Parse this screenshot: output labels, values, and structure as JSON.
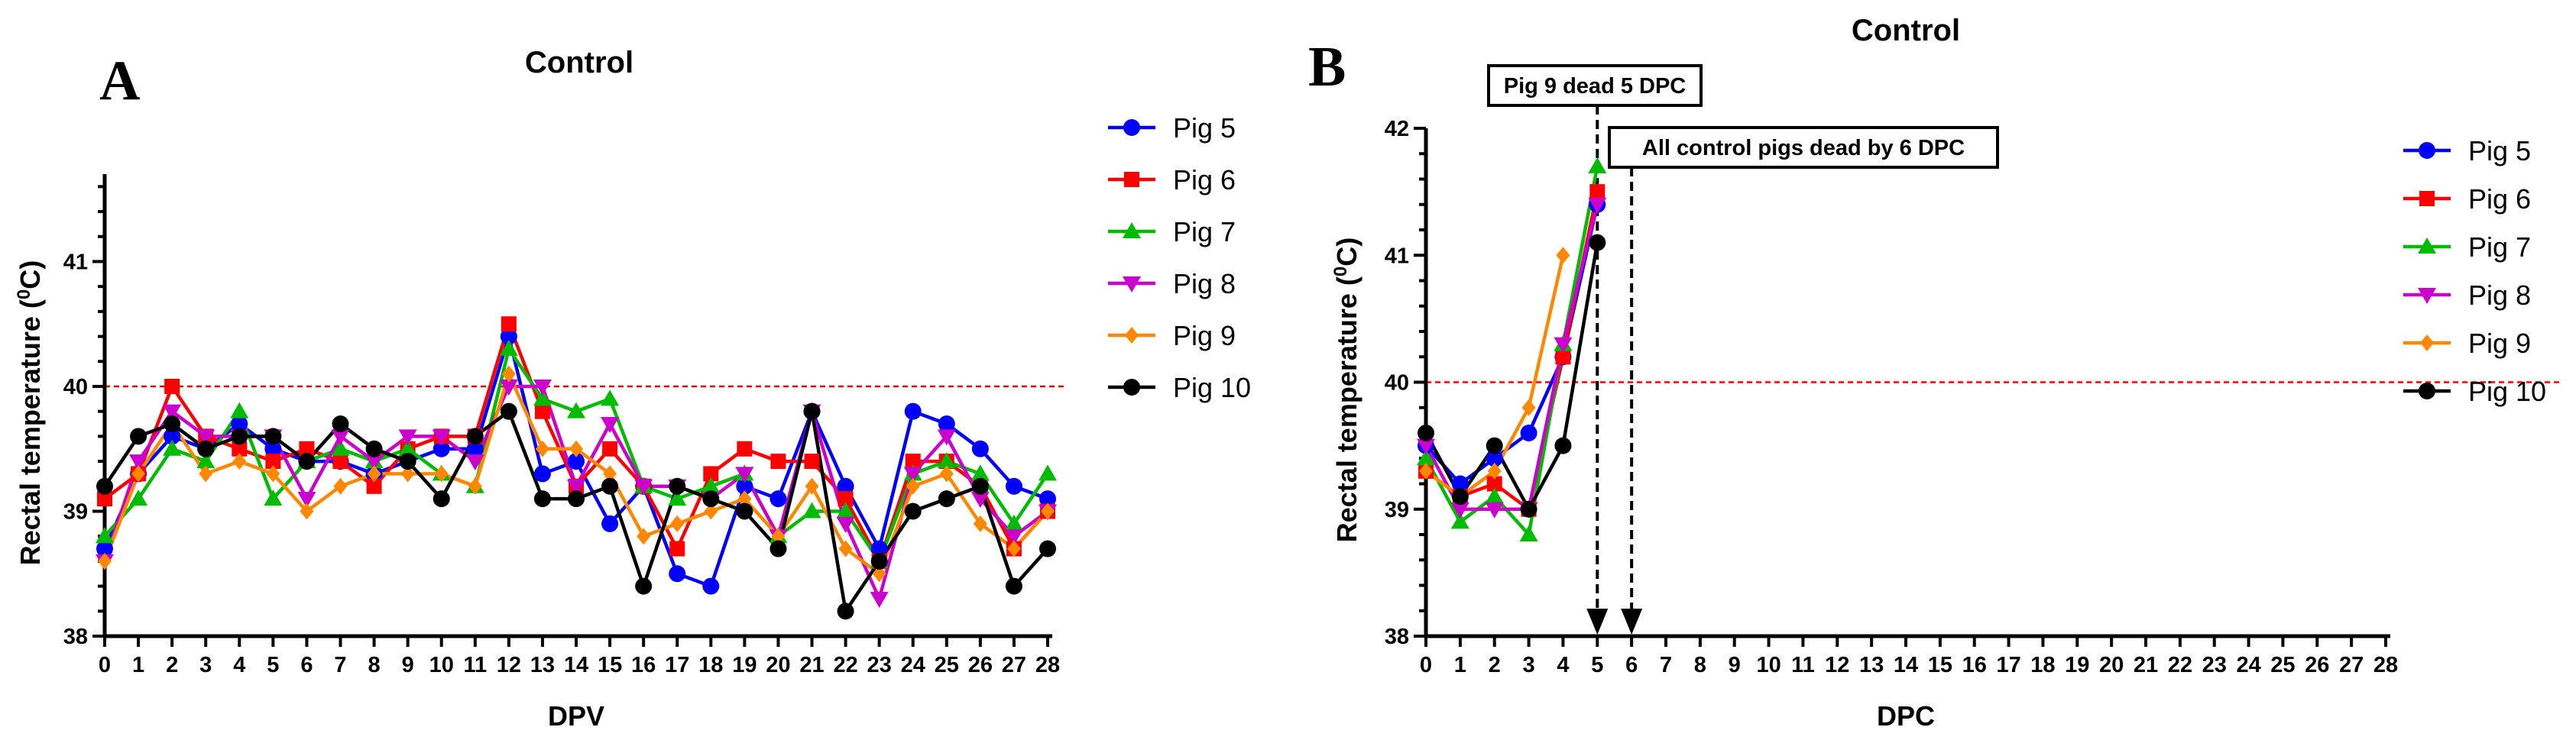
{
  "chart_data": [
    {
      "panel": "A",
      "type": "line",
      "title": "Control",
      "xlabel": "DPV",
      "ylabel": "Rectal temperature (⁰C)",
      "ylabel_main": "Rectal temperature (",
      "ylabel_sup": "0",
      "ylabel_end": "C)",
      "x": [
        0,
        1,
        2,
        3,
        4,
        5,
        6,
        7,
        8,
        9,
        10,
        11,
        12,
        13,
        14,
        15,
        16,
        17,
        18,
        19,
        20,
        21,
        22,
        23,
        24,
        25,
        26,
        27,
        28
      ],
      "xlim": [
        0,
        28
      ],
      "ylim": [
        38,
        41.7
      ],
      "yticks": [
        38,
        39,
        40,
        41
      ],
      "reference_line": 40,
      "series": [
        {
          "name": "Pig 5",
          "color": "#0000ff",
          "marker": "circle",
          "values": [
            38.7,
            39.3,
            39.6,
            39.5,
            39.7,
            39.5,
            39.4,
            39.4,
            39.3,
            39.4,
            39.5,
            39.5,
            40.4,
            39.3,
            39.4,
            38.9,
            39.2,
            38.5,
            38.4,
            39.2,
            39.1,
            39.8,
            39.2,
            38.7,
            39.8,
            39.7,
            39.5,
            39.2,
            39.1
          ]
        },
        {
          "name": "Pig 6",
          "color": "#ff0000",
          "marker": "square",
          "values": [
            39.1,
            39.3,
            40.0,
            39.6,
            39.5,
            39.4,
            39.5,
            39.4,
            39.2,
            39.5,
            39.6,
            39.6,
            40.5,
            39.8,
            39.2,
            39.5,
            39.2,
            38.7,
            39.3,
            39.5,
            39.4,
            39.4,
            39.1,
            38.6,
            39.4,
            39.4,
            39.2,
            38.7,
            39.0
          ]
        },
        {
          "name": "Pig 7",
          "color": "#00bb00",
          "marker": "triangle-up",
          "values": [
            38.8,
            39.1,
            39.5,
            39.4,
            39.8,
            39.1,
            39.4,
            39.5,
            39.4,
            39.5,
            39.3,
            39.2,
            40.3,
            39.9,
            39.8,
            39.9,
            39.2,
            39.1,
            39.2,
            39.3,
            38.8,
            39.0,
            39.0,
            38.6,
            39.3,
            39.4,
            39.3,
            38.9,
            39.3
          ]
        },
        {
          "name": "Pig 8",
          "color": "#cc00cc",
          "marker": "triangle-down",
          "values": [
            38.6,
            39.4,
            39.8,
            39.6,
            39.6,
            39.6,
            39.1,
            39.6,
            39.4,
            39.6,
            39.6,
            39.4,
            40.0,
            40.0,
            39.2,
            39.7,
            39.2,
            39.2,
            39.1,
            39.3,
            38.8,
            39.8,
            38.9,
            38.3,
            39.3,
            39.6,
            39.1,
            38.8,
            39.0
          ]
        },
        {
          "name": "Pig 9",
          "color": "#ff8800",
          "marker": "diamond",
          "values": [
            38.6,
            39.3,
            39.7,
            39.3,
            39.4,
            39.3,
            39.0,
            39.2,
            39.3,
            39.3,
            39.3,
            39.2,
            40.1,
            39.5,
            39.5,
            39.3,
            38.8,
            38.9,
            39.0,
            39.1,
            38.8,
            39.2,
            38.7,
            38.5,
            39.2,
            39.3,
            38.9,
            38.7,
            39.0
          ]
        },
        {
          "name": "Pig 10",
          "color": "#000000",
          "marker": "circle",
          "values": [
            39.2,
            39.6,
            39.7,
            39.5,
            39.6,
            39.6,
            39.4,
            39.7,
            39.5,
            39.4,
            39.1,
            39.6,
            39.8,
            39.1,
            39.1,
            39.2,
            38.4,
            39.2,
            39.1,
            39.0,
            38.7,
            39.8,
            38.2,
            38.6,
            39.0,
            39.1,
            39.2,
            38.4,
            38.7
          ]
        }
      ],
      "legend": "right"
    },
    {
      "panel": "B",
      "type": "line",
      "title": "Control",
      "xlabel": "DPC",
      "ylabel": "Rectal temperature (⁰C)",
      "ylabel_main": "Rectal temperature (",
      "ylabel_sup": "0",
      "ylabel_end": "C)",
      "x": [
        0,
        1,
        2,
        3,
        4,
        5
      ],
      "xlim": [
        0,
        28
      ],
      "xticks": [
        0,
        1,
        2,
        3,
        4,
        5,
        6,
        7,
        8,
        9,
        10,
        11,
        12,
        13,
        14,
        15,
        16,
        17,
        18,
        19,
        20,
        21,
        22,
        23,
        24,
        25,
        26,
        27,
        28
      ],
      "ylim": [
        38,
        42
      ],
      "yticks": [
        38,
        39,
        40,
        41,
        42
      ],
      "reference_line": 40,
      "series": [
        {
          "name": "Pig 5",
          "color": "#0000ff",
          "marker": "circle",
          "values": [
            39.5,
            39.2,
            39.4,
            39.6,
            40.2,
            41.4
          ]
        },
        {
          "name": "Pig 6",
          "color": "#ff0000",
          "marker": "square",
          "values": [
            39.3,
            39.1,
            39.2,
            39.0,
            40.2,
            41.5
          ]
        },
        {
          "name": "Pig 7",
          "color": "#00bb00",
          "marker": "triangle-up",
          "values": [
            39.4,
            38.9,
            39.1,
            38.8,
            40.3,
            41.7
          ]
        },
        {
          "name": "Pig 8",
          "color": "#cc00cc",
          "marker": "triangle-down",
          "values": [
            39.5,
            39.0,
            39.0,
            39.0,
            40.3,
            41.4
          ]
        },
        {
          "name": "Pig 9",
          "color": "#ff8800",
          "marker": "diamond",
          "values": [
            39.3,
            39.1,
            39.3,
            39.8,
            41.0,
            null
          ]
        },
        {
          "name": "Pig 10",
          "color": "#000000",
          "marker": "circle",
          "values": [
            39.6,
            39.1,
            39.5,
            39.0,
            39.5,
            41.1
          ]
        }
      ],
      "annotations": [
        {
          "text": "Pig 9 dead 5 DPC",
          "x": 5
        },
        {
          "text": "All control pigs dead by 6 DPC",
          "x": 6
        }
      ],
      "legend": "right"
    }
  ]
}
